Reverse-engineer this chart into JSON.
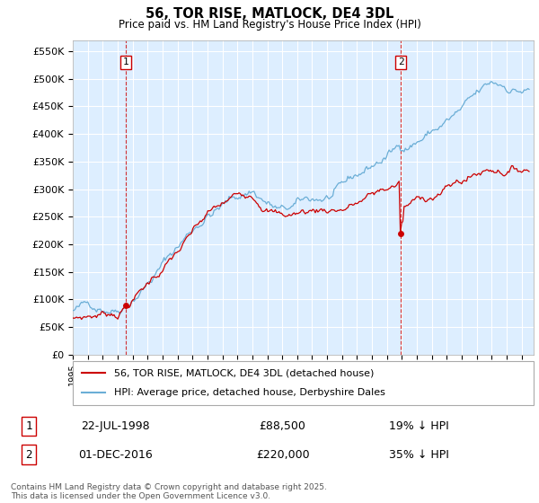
{
  "title": "56, TOR RISE, MATLOCK, DE4 3DL",
  "subtitle": "Price paid vs. HM Land Registry's House Price Index (HPI)",
  "legend_line1": "56, TOR RISE, MATLOCK, DE4 3DL (detached house)",
  "legend_line2": "HPI: Average price, detached house, Derbyshire Dales",
  "annotation1_label": "1",
  "annotation1_date": "22-JUL-1998",
  "annotation1_price": "£88,500",
  "annotation1_hpi": "19% ↓ HPI",
  "annotation2_label": "2",
  "annotation2_date": "01-DEC-2016",
  "annotation2_price": "£220,000",
  "annotation2_hpi": "35% ↓ HPI",
  "copyright": "Contains HM Land Registry data © Crown copyright and database right 2025.\nThis data is licensed under the Open Government Licence v3.0.",
  "hpi_color": "#6baed6",
  "price_color": "#cc0000",
  "vline_color": "#cc0000",
  "background_color": "#ffffff",
  "plot_bg_color": "#ddeeff",
  "grid_color": "#ffffff",
  "ylim": [
    0,
    570000
  ],
  "yticks": [
    0,
    50000,
    100000,
    150000,
    200000,
    250000,
    300000,
    350000,
    400000,
    450000,
    500000,
    550000
  ],
  "xlim_start": 1995.0,
  "xlim_end": 2025.8,
  "sale1_x": 1998.55,
  "sale1_y": 88500,
  "sale2_x": 2016.92,
  "sale2_y": 220000
}
